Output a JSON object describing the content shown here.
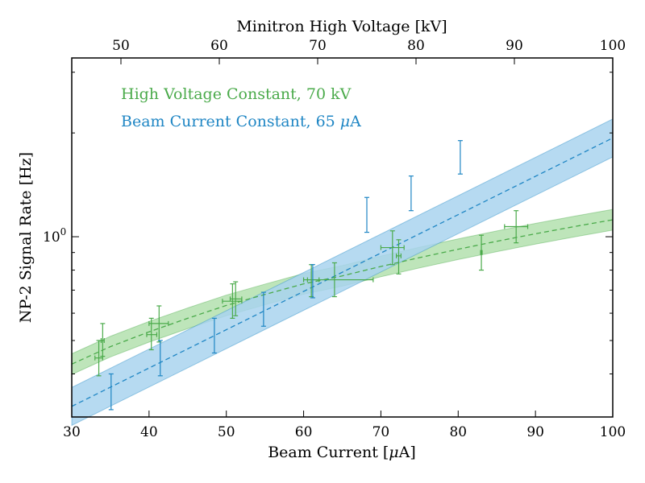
{
  "chart_data": {
    "type": "scatter",
    "xlabel": "Beam Current [",
    "xlabel_unit": "μ",
    "xlabel_end": "A]",
    "x2label": "Minitron High Voltage [kV]",
    "ylabel": "NP-2 Signal Rate [Hz]",
    "xlim": [
      30,
      100
    ],
    "x2lim": [
      45,
      100
    ],
    "ylim": [
      0.3,
      3.3
    ],
    "yscale": "log",
    "x_ticks": [
      "30",
      "40",
      "50",
      "60",
      "70",
      "80",
      "90",
      "100"
    ],
    "x2_ticks": [
      "50",
      "60",
      "70",
      "80",
      "90",
      "100"
    ],
    "y_tick_base": "10",
    "y_tick_exp": "0",
    "grid": false,
    "legend_position": "top-left",
    "colors": {
      "green": "#4aaa4a",
      "blue": "#1f86c4",
      "green_band": "#b3e0ae",
      "blue_band": "#a9d3ee"
    },
    "series": [
      {
        "name": "High Voltage Constant, 70 kV",
        "axis": "bottom",
        "color": "#4aaa4a",
        "points": [
          {
            "x": 33.5,
            "y": 0.445,
            "ylo": 0.395,
            "yhi": 0.5,
            "xlo": 33.0,
            "xhi": 34.0
          },
          {
            "x": 34.0,
            "y": 0.5,
            "ylo": 0.45,
            "yhi": 0.56,
            "xlo": 33.8,
            "xhi": 34.2
          },
          {
            "x": 40.3,
            "y": 0.52,
            "ylo": 0.47,
            "yhi": 0.58,
            "xlo": 39.7,
            "xhi": 41.0
          },
          {
            "x": 41.3,
            "y": 0.56,
            "ylo": 0.495,
            "yhi": 0.63,
            "xlo": 40.0,
            "xhi": 42.5
          },
          {
            "x": 50.8,
            "y": 0.65,
            "ylo": 0.58,
            "yhi": 0.73,
            "xlo": 49.5,
            "xhi": 52.0
          },
          {
            "x": 51.2,
            "y": 0.66,
            "ylo": 0.59,
            "yhi": 0.74,
            "xlo": 50.5,
            "xhi": 52.0
          },
          {
            "x": 61.0,
            "y": 0.75,
            "ylo": 0.67,
            "yhi": 0.83,
            "xlo": 60.0,
            "xhi": 62.0
          },
          {
            "x": 64.0,
            "y": 0.75,
            "ylo": 0.67,
            "yhi": 0.84,
            "xlo": 60.5,
            "xhi": 69.0
          },
          {
            "x": 71.5,
            "y": 0.93,
            "ylo": 0.83,
            "yhi": 1.04,
            "xlo": 70.0,
            "xhi": 73.0
          },
          {
            "x": 72.3,
            "y": 0.88,
            "ylo": 0.78,
            "yhi": 0.98,
            "xlo": 72.0,
            "xhi": 72.6
          },
          {
            "x": 83.0,
            "y": 0.9,
            "ylo": 0.8,
            "yhi": 1.01,
            "xlo": 82.9,
            "xhi": 83.1
          },
          {
            "x": 87.5,
            "y": 1.07,
            "ylo": 0.96,
            "yhi": 1.19,
            "xlo": 86.0,
            "xhi": 89.0
          }
        ],
        "fit": {
          "x": [
            30,
            35,
            40,
            45,
            50,
            55,
            60,
            65,
            70,
            75,
            80,
            85,
            90,
            95,
            100
          ],
          "y": [
            0.427,
            0.48,
            0.53,
            0.58,
            0.632,
            0.68,
            0.73,
            0.77,
            0.82,
            0.87,
            0.92,
            0.97,
            1.02,
            1.07,
            1.12
          ],
          "band": 0.03
        }
      },
      {
        "name": "Beam Current Constant, 65 ",
        "name_unit": "μ",
        "name_end": "A",
        "axis": "top",
        "color": "#1f86c4",
        "points": [
          {
            "x": 49.0,
            "y": 0.355,
            "ylo": 0.315,
            "yhi": 0.4
          },
          {
            "x": 54.0,
            "y": 0.445,
            "ylo": 0.395,
            "yhi": 0.5
          },
          {
            "x": 59.5,
            "y": 0.52,
            "ylo": 0.46,
            "yhi": 0.58
          },
          {
            "x": 64.5,
            "y": 0.62,
            "ylo": 0.55,
            "yhi": 0.69
          },
          {
            "x": 69.5,
            "y": 0.74,
            "ylo": 0.665,
            "yhi": 0.83
          },
          {
            "x": 75.0,
            "y": 1.16,
            "ylo": 1.03,
            "yhi": 1.3
          },
          {
            "x": 79.5,
            "y": 1.34,
            "ylo": 1.19,
            "yhi": 1.5
          },
          {
            "x": 84.5,
            "y": 1.7,
            "ylo": 1.52,
            "yhi": 1.9
          }
        ],
        "fit": {
          "x": [
            45,
            50,
            55,
            60,
            65,
            70,
            75,
            80,
            85,
            90,
            95,
            100
          ],
          "y": [
            0.322,
            0.379,
            0.446,
            0.525,
            0.618,
            0.727,
            0.856,
            1.008,
            1.186,
            1.396,
            1.643,
            1.934
          ],
          "band": 0.055
        }
      }
    ]
  }
}
